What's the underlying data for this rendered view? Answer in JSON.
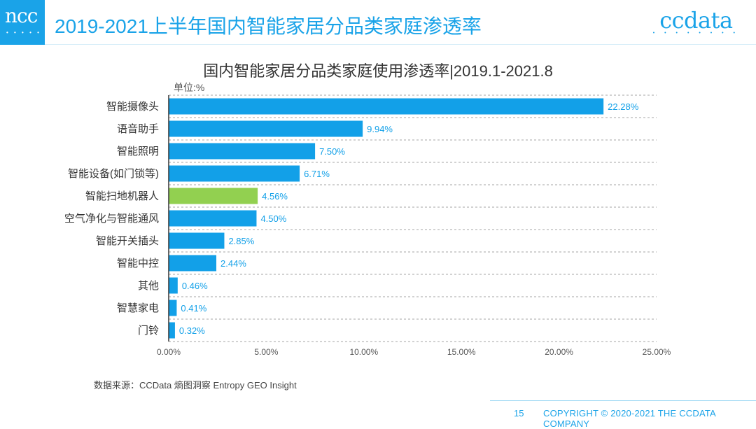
{
  "header": {
    "logo_left": "ncc",
    "title": "2019-2021上半年国内智能家居分品类家庭渗透率",
    "logo_right": "ccdata"
  },
  "chart_data": {
    "type": "bar",
    "orientation": "horizontal",
    "title": "国内智能家居分品类家庭使用渗透率|2019.1-2021.8",
    "unit_label": "单位:%",
    "categories": [
      "智能摄像头",
      "语音助手",
      "智能照明",
      "智能设备(如门锁等)",
      "智能扫地机器人",
      "空气净化与智能通风",
      "智能开关插头",
      "智能中控",
      "其他",
      "智慧家电",
      "门铃"
    ],
    "values": [
      22.28,
      9.94,
      7.5,
      6.71,
      4.56,
      4.5,
      2.85,
      2.44,
      0.46,
      0.41,
      0.32
    ],
    "value_labels": [
      "22.28%",
      "9.94%",
      "7.50%",
      "6.71%",
      "4.56%",
      "4.50%",
      "2.85%",
      "2.44%",
      "0.46%",
      "0.41%",
      "0.32%"
    ],
    "xlim": [
      0,
      25
    ],
    "x_ticks": [
      "0.00%",
      "5.00%",
      "10.00%",
      "15.00%",
      "20.00%",
      "25.00%"
    ],
    "grid": true,
    "colors": {
      "default": "#12a0e8",
      "highlight": "#92d050",
      "label": "#12a0e8",
      "axis": "#333333",
      "grid": "#888888"
    },
    "highlight_category": "智能扫地机器人"
  },
  "source": "数据来源：CCData 熵图洞察 Entropy GEO Insight",
  "footer": {
    "page": "15",
    "copyright": "COPYRIGHT © 2020-2021 THE CCDATA COMPANY"
  }
}
